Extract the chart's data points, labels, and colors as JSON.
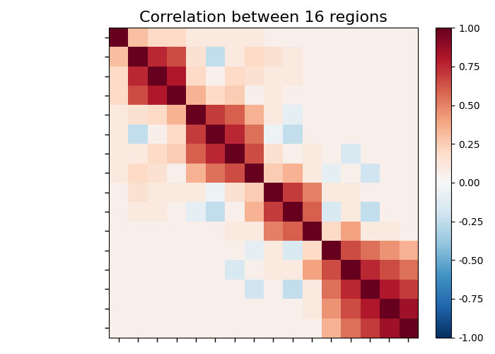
{
  "title": "Correlation between 16 regions",
  "n": 16,
  "vmin": -1.0,
  "vmax": 1.0,
  "cmap": "RdBu_r",
  "title_fontsize": 16,
  "figsize": [
    7.0,
    5.0
  ],
  "dpi": 100,
  "matrix": [
    [
      1.0,
      0.3,
      0.2,
      0.2,
      0.1,
      0.1,
      0.1,
      0.1,
      0.05,
      0.05,
      0.05,
      0.05,
      0.05,
      0.05,
      0.05,
      0.05
    ],
    [
      0.3,
      1.0,
      0.75,
      0.65,
      0.15,
      -0.25,
      0.1,
      0.2,
      0.15,
      0.1,
      0.05,
      0.05,
      0.05,
      0.05,
      0.05,
      0.05
    ],
    [
      0.2,
      0.75,
      1.0,
      0.8,
      0.2,
      0.05,
      0.2,
      0.15,
      0.1,
      0.1,
      0.05,
      0.05,
      0.05,
      0.05,
      0.05,
      0.05
    ],
    [
      0.2,
      0.65,
      0.8,
      1.0,
      0.35,
      0.2,
      0.25,
      0.05,
      0.1,
      0.05,
      0.05,
      0.05,
      0.05,
      0.05,
      0.05,
      0.05
    ],
    [
      0.1,
      0.15,
      0.2,
      0.35,
      1.0,
      0.7,
      0.6,
      0.35,
      0.1,
      -0.1,
      0.05,
      0.05,
      0.05,
      0.05,
      0.05,
      0.05
    ],
    [
      0.1,
      -0.25,
      0.05,
      0.2,
      0.7,
      1.0,
      0.75,
      0.55,
      -0.05,
      -0.25,
      0.05,
      0.05,
      0.05,
      0.05,
      0.05,
      0.05
    ],
    [
      0.1,
      0.1,
      0.2,
      0.25,
      0.6,
      0.75,
      1.0,
      0.65,
      0.15,
      0.05,
      0.1,
      0.05,
      -0.15,
      0.05,
      0.05,
      0.05
    ],
    [
      0.1,
      0.2,
      0.15,
      0.05,
      0.35,
      0.55,
      0.65,
      1.0,
      0.25,
      0.35,
      0.1,
      -0.1,
      0.05,
      -0.2,
      0.05,
      0.05
    ],
    [
      0.05,
      0.15,
      0.1,
      0.1,
      0.1,
      -0.05,
      0.15,
      0.25,
      1.0,
      0.7,
      0.5,
      0.1,
      0.1,
      0.05,
      0.05,
      0.05
    ],
    [
      0.05,
      0.1,
      0.1,
      0.05,
      -0.1,
      -0.25,
      0.05,
      0.35,
      0.7,
      1.0,
      0.6,
      -0.15,
      0.1,
      -0.25,
      0.05,
      0.05
    ],
    [
      0.05,
      0.05,
      0.05,
      0.05,
      0.05,
      0.05,
      0.1,
      0.1,
      0.5,
      0.6,
      1.0,
      0.2,
      0.4,
      0.1,
      0.1,
      0.05
    ],
    [
      0.05,
      0.05,
      0.05,
      0.05,
      0.05,
      0.05,
      0.05,
      -0.1,
      0.1,
      -0.15,
      0.2,
      1.0,
      0.65,
      0.55,
      0.45,
      0.35
    ],
    [
      0.05,
      0.05,
      0.05,
      0.05,
      0.05,
      0.05,
      -0.15,
      0.05,
      0.1,
      0.1,
      0.4,
      0.65,
      1.0,
      0.75,
      0.65,
      0.55
    ],
    [
      0.05,
      0.05,
      0.05,
      0.05,
      0.05,
      0.05,
      0.05,
      -0.2,
      0.05,
      -0.25,
      0.1,
      0.55,
      0.75,
      1.0,
      0.8,
      0.7
    ],
    [
      0.05,
      0.05,
      0.05,
      0.05,
      0.05,
      0.05,
      0.05,
      0.05,
      0.05,
      0.05,
      0.1,
      0.45,
      0.65,
      0.8,
      1.0,
      0.85
    ],
    [
      0.05,
      0.05,
      0.05,
      0.05,
      0.05,
      0.05,
      0.05,
      0.05,
      0.05,
      0.05,
      0.05,
      0.35,
      0.55,
      0.7,
      0.85,
      1.0
    ]
  ]
}
